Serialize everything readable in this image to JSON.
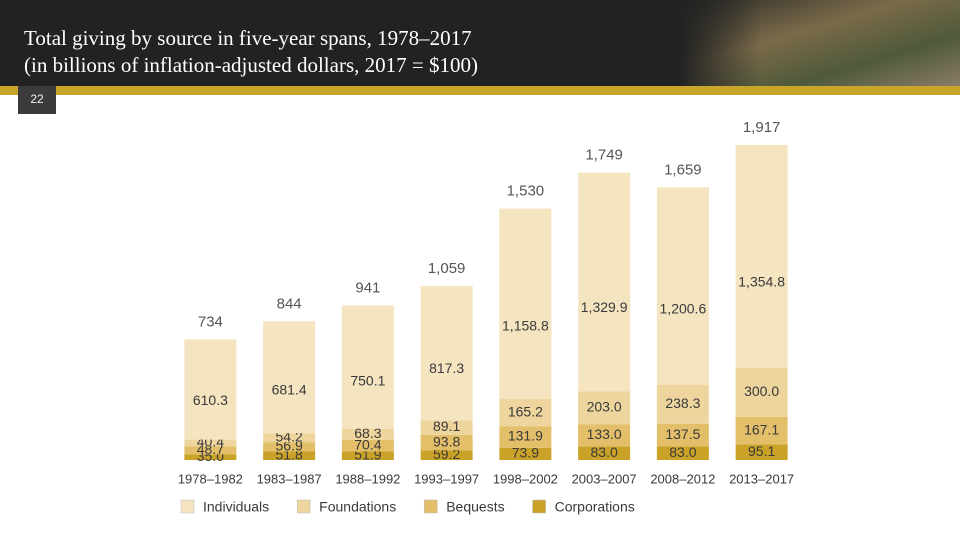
{
  "page_number": "22",
  "chart_data": {
    "type": "stacked-bar",
    "title": "Total giving by source in five-year spans, 1978–2017",
    "subtitle": "(in billions of inflation-adjusted dollars, 2017 = $100)",
    "categories": [
      "1978–1982",
      "1983–1987",
      "1988–1992",
      "1993–1997",
      "1998–2002",
      "2003–2007",
      "2008–2012",
      "2013–2017"
    ],
    "series": [
      {
        "name": "Individuals",
        "color": "#f4e4c0",
        "values": [
          610.3,
          681.4,
          750.1,
          817.3,
          1158.8,
          1329.9,
          1200.6,
          1354.8
        ],
        "value_labels": [
          "610.3",
          "681.4",
          "750.1",
          "817.3",
          "1,158.8",
          "1,329.9",
          "1,200.6",
          "1,354.8"
        ]
      },
      {
        "name": "Foundations",
        "color": "#edd59d",
        "values": [
          40.4,
          54.2,
          68.3,
          89.1,
          165.2,
          203.0,
          238.3,
          300.0
        ],
        "value_labels": [
          "40.4",
          "54.2",
          "68.3",
          "89.1",
          "165.2",
          "203.0",
          "238.3",
          "300.0"
        ]
      },
      {
        "name": "Bequests",
        "color": "#e2bf68",
        "values": [
          48.7,
          56.9,
          70.4,
          93.8,
          131.9,
          133.0,
          137.5,
          167.1
        ],
        "value_labels": [
          "48.7",
          "56.9",
          "70.4",
          "93.8",
          "131.9",
          "133.0",
          "137.5",
          "167.1"
        ]
      },
      {
        "name": "Corporations",
        "color": "#cba228",
        "values": [
          35.0,
          51.8,
          51.9,
          59.2,
          73.9,
          83.0,
          83.0,
          95.1
        ],
        "value_labels": [
          "35.0",
          "51.8",
          "51.9",
          "59.2",
          "73.9",
          "83.0",
          "83.0",
          "95.1"
        ]
      }
    ],
    "totals": [
      734,
      844,
      941,
      1059,
      1530,
      1749,
      1659,
      1917
    ],
    "total_labels": [
      "734",
      "844",
      "941",
      "1,059",
      "1,530",
      "1,749",
      "1,659",
      "1,917"
    ]
  }
}
